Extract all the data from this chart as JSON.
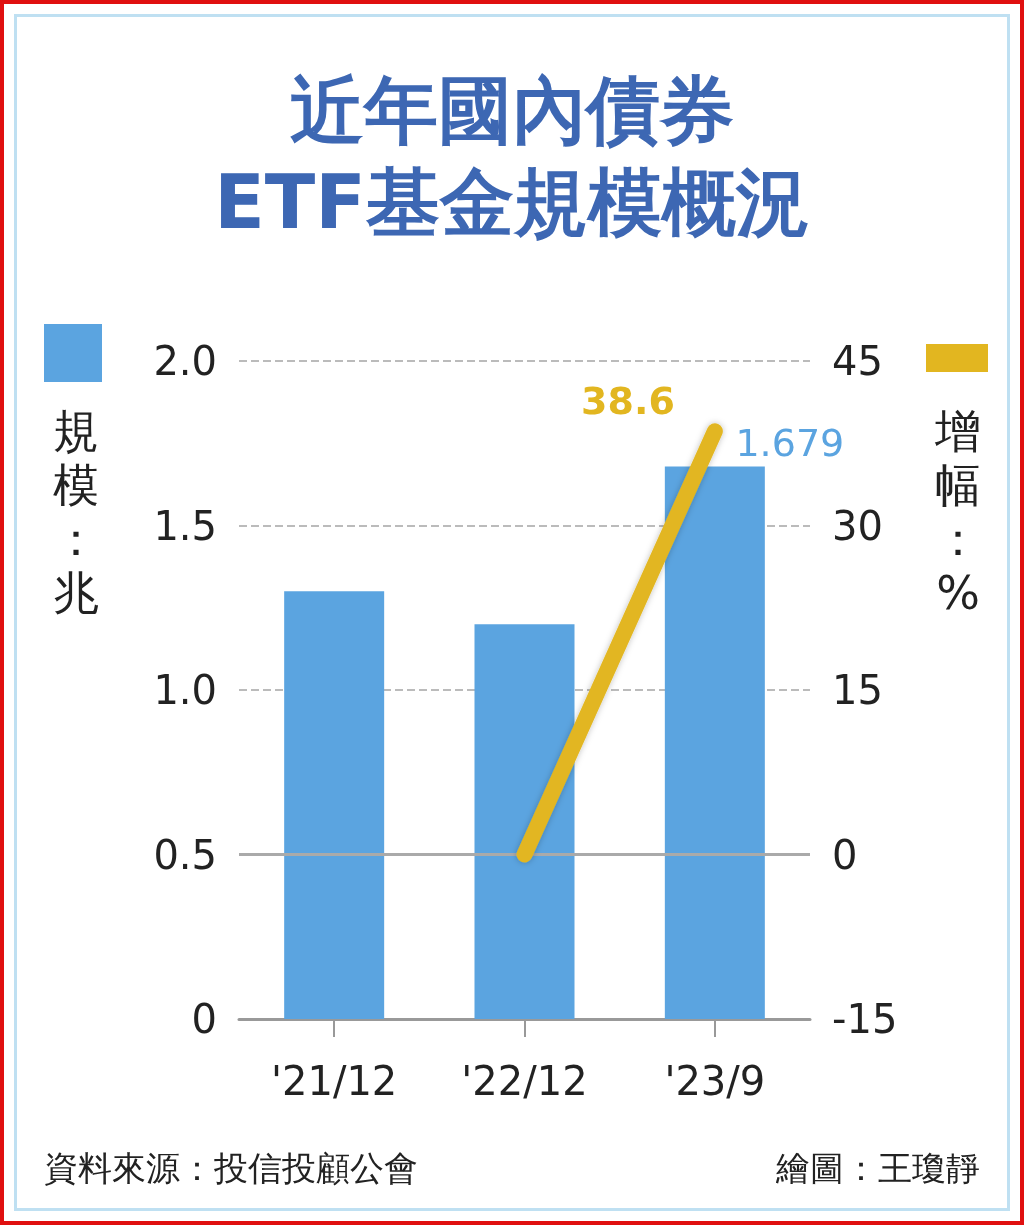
{
  "chart_data": {
    "type": "bar",
    "title": "近年國內債券\nETF基金規模概況",
    "categories": [
      "'21/12",
      "'22/12",
      "'23/9"
    ],
    "ylabel": "規模：兆",
    "y2label": "增幅：%",
    "series": [
      {
        "color": "#5ba4e0",
        "values": [
          1.3,
          1.2,
          1.679
        ],
        "value_labels": [
          null,
          null,
          "1.679"
        ]
      },
      {
        "type": "line",
        "axis": "y2",
        "color": "#e2b620",
        "values": [
          null,
          0,
          38.6
        ],
        "value_labels": [
          null,
          null,
          "38.6"
        ]
      }
    ],
    "ylim": [
      0,
      2
    ],
    "yticks": [
      0,
      0.5,
      {
        "value": 1,
        "label": "1.0"
      },
      1.5,
      {
        "value": 2,
        "label": "2.0"
      }
    ],
    "y2lim": [
      -15,
      45
    ],
    "y2ticks": [
      -15,
      0,
      15,
      30,
      45
    ],
    "ref_lines": [
      {
        "axis": "y2",
        "value": 0,
        "color": "#aaaaaa",
        "line_style": "solid"
      }
    ],
    "grid": "y",
    "marker": "none",
    "annotations": [
      "資料來源：投信投顧公會",
      "繪圖：王瓊靜"
    ]
  }
}
